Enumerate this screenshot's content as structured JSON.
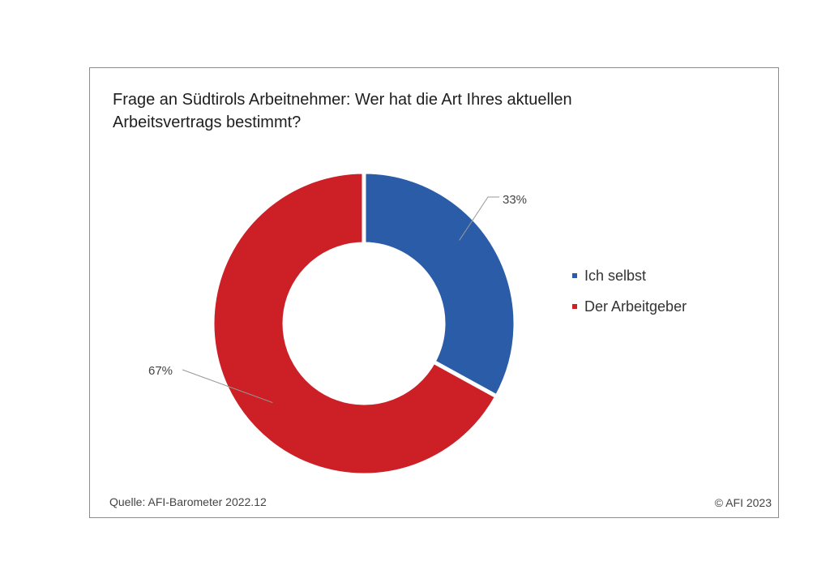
{
  "chart_data": {
    "type": "pie",
    "variant": "donut",
    "title": "Frage an Südtirols Arbeitnehmer: Wer hat die Art Ihres aktuellen Arbeitsvertrags bestimmt?",
    "title_lines": [
      "Frage an Südtirols Arbeitnehmer: Wer hat die Art Ihres aktuellen",
      "Arbeitsvertrags bestimmt?"
    ],
    "categories": [
      "Ich selbst",
      "Der Arbeitgeber"
    ],
    "values": [
      33,
      67
    ],
    "labels": [
      "33%",
      "67%"
    ],
    "colors": [
      "#2b5ca8",
      "#cc1f26"
    ],
    "legend_position": "right"
  },
  "footer": {
    "source": "Quelle: AFI-Barometer 2022.12",
    "copyright": "© AFI 2023"
  }
}
